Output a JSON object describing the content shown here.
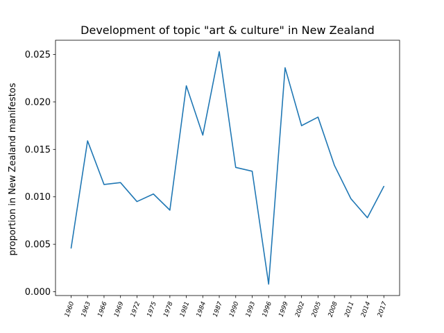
{
  "chart_data": {
    "type": "line",
    "title": "Development of topic \"art & culture\" in New Zealand",
    "xlabel": "",
    "ylabel": "proportion in New Zealand manifestos",
    "categories": [
      "1960",
      "1963",
      "1966",
      "1969",
      "1972",
      "1975",
      "1978",
      "1981",
      "1984",
      "1987",
      "1990",
      "1993",
      "1996",
      "1999",
      "2002",
      "2005",
      "2008",
      "2011",
      "2014",
      "2017"
    ],
    "series": [
      {
        "values": [
          0.0046,
          0.0159,
          0.0113,
          0.0115,
          0.0095,
          0.0103,
          0.0086,
          0.0217,
          0.0165,
          0.0253,
          0.0131,
          0.0127,
          0.0008,
          0.0236,
          0.0175,
          0.0184,
          0.0133,
          0.0098,
          0.0078,
          0.0111
        ],
        "color": "#1f77b4"
      }
    ],
    "yticks": [
      "0.000",
      "0.005",
      "0.010",
      "0.015",
      "0.020",
      "0.025"
    ],
    "ylim": [
      -0.0004,
      0.0265
    ],
    "grid": false,
    "legend": "none"
  }
}
